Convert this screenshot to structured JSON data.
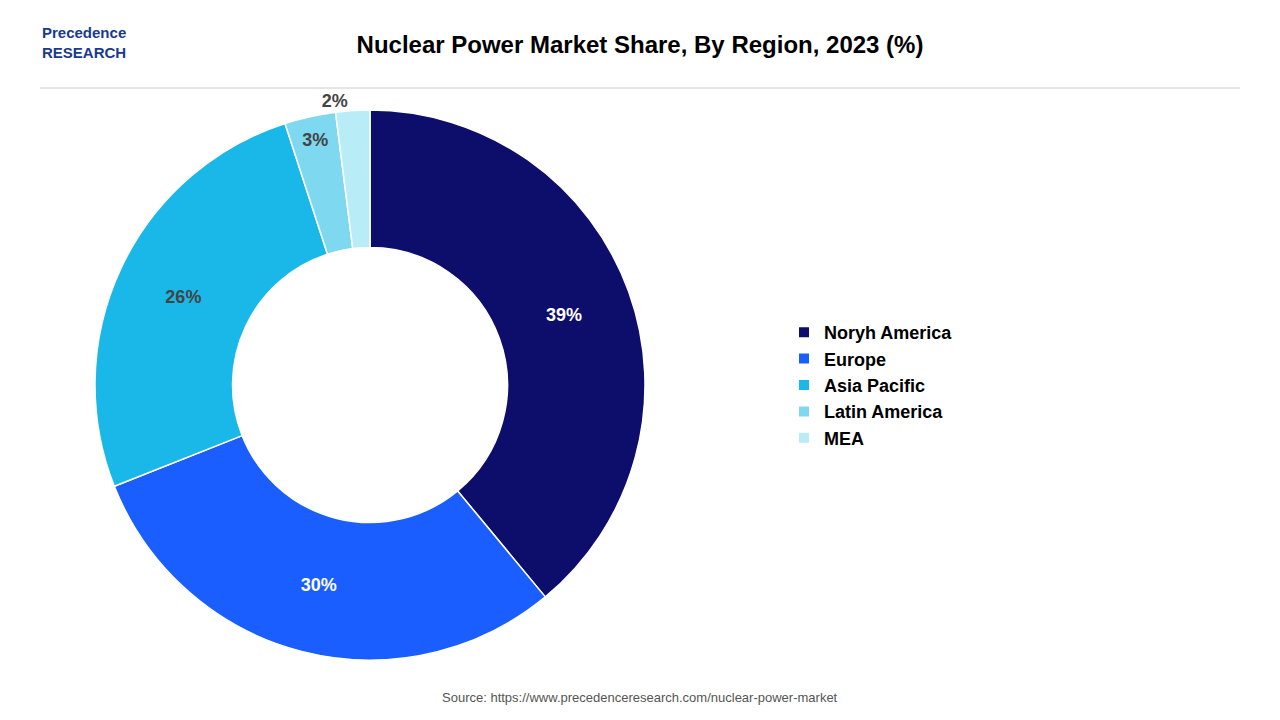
{
  "chart_data": {
    "type": "donut",
    "title": "Nuclear Power Market Share, By Region, 2023 (%)",
    "categories": [
      "Noryh America",
      "Europe",
      "Asia Pacific",
      "Latin America",
      "MEA"
    ],
    "values": [
      39,
      30,
      26,
      3,
      2
    ],
    "value_labels": [
      "39%",
      "30%",
      "26%",
      "3%",
      "2%"
    ],
    "colors": [
      "#0d0d6b",
      "#1a5eff",
      "#1ab8e8",
      "#7dd8f0",
      "#b8ecf7"
    ],
    "data_labels": true,
    "legend": "right",
    "annotations": [
      "Source: https://www.precedenceresearch.com/nuclear-power-market",
      "Precedence\nRESEARCH"
    ]
  }
}
